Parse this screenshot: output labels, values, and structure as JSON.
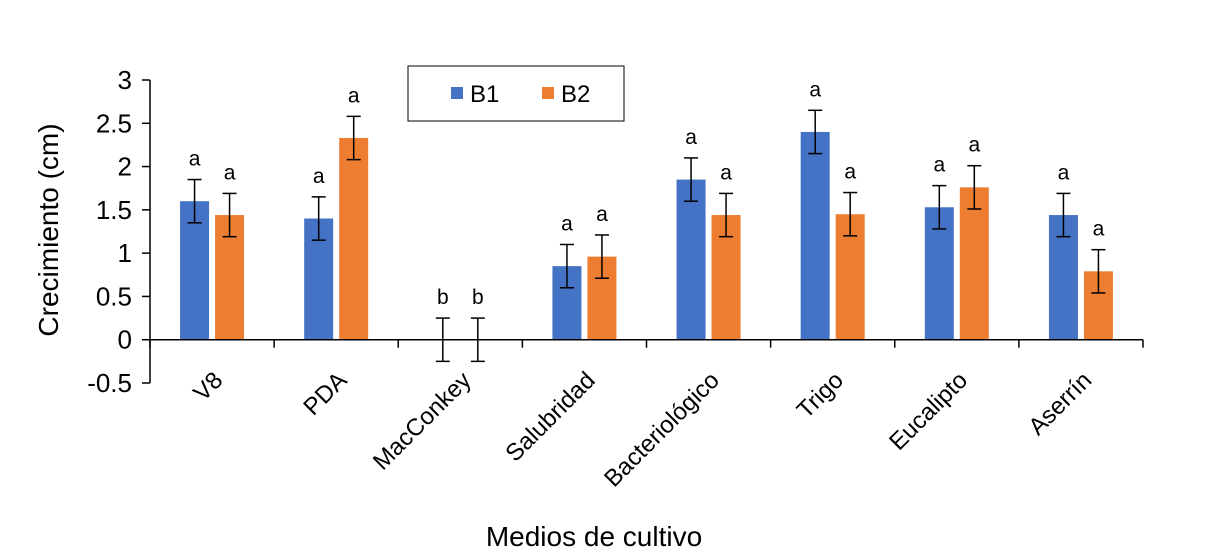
{
  "chart_data": {
    "type": "bar",
    "xlabel": "Medios de cultivo",
    "ylabel": "Crecimiento (cm)",
    "ylim": [
      -0.5,
      3
    ],
    "yticks": [
      "-0.5",
      "0",
      "0.5",
      "1",
      "1.5",
      "2",
      "2.5",
      "3"
    ],
    "categories": [
      "V8",
      "PDA",
      "MacConkey",
      "Salubridad",
      "Bacteriológico",
      "Trigo",
      "Eucalipto",
      "Aserrín"
    ],
    "series": [
      {
        "name": "B1",
        "color": "#4472C4",
        "values": [
          1.6,
          1.4,
          0,
          0.85,
          1.85,
          2.4,
          1.53,
          1.44
        ],
        "errors": [
          0.25,
          0.25,
          0.25,
          0.25,
          0.25,
          0.25,
          0.25,
          0.25
        ],
        "letters": [
          "a",
          "a",
          "b",
          "a",
          "a",
          "a",
          "a",
          "a"
        ]
      },
      {
        "name": "B2",
        "color": "#ED7D31",
        "values": [
          1.44,
          2.33,
          0,
          0.96,
          1.44,
          1.45,
          1.76,
          0.79
        ],
        "errors": [
          0.25,
          0.25,
          0.25,
          0.25,
          0.25,
          0.25,
          0.25,
          0.25
        ],
        "letters": [
          "a",
          "a",
          "b",
          "a",
          "a",
          "a",
          "a",
          "a"
        ]
      }
    ],
    "legend_position": "top-center",
    "grid": false
  }
}
